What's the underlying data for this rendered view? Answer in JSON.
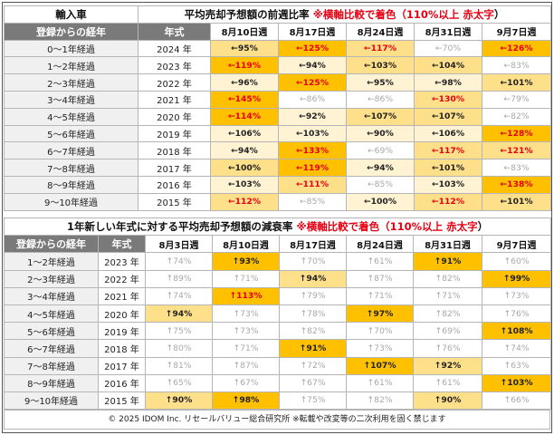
{
  "table1": {
    "corner_label": "輸入車",
    "title_prefix": "平均売却予想額の前週比率 ",
    "title_note": "※横軸比較で着色（110%以上 ",
    "title_red": "赤太字",
    "title_suffix": "）",
    "col_head_elapsed": "登録からの経年",
    "col_head_year": "年式",
    "weeks": [
      "8月10日週",
      "8月17日週",
      "8月24日週",
      "8月31日週",
      "9月7日週"
    ],
    "rows": [
      {
        "elapsed": "0〜1年経過",
        "year": "2024 年",
        "cells": [
          {
            "t": "←95%",
            "lv": 2,
            "hi": false
          },
          {
            "t": "←125%",
            "lv": 3,
            "hi": true
          },
          {
            "t": "←117%",
            "lv": 2,
            "hi": true
          },
          {
            "t": "←70%",
            "lv": 0,
            "hi": false
          },
          {
            "t": "←126%",
            "lv": 3,
            "hi": true
          }
        ]
      },
      {
        "elapsed": "1〜2年経過",
        "year": "2023 年",
        "cells": [
          {
            "t": "←119%",
            "lv": 3,
            "hi": true
          },
          {
            "t": "←94%",
            "lv": 1,
            "hi": false
          },
          {
            "t": "←103%",
            "lv": 2,
            "hi": false
          },
          {
            "t": "←104%",
            "lv": 2,
            "hi": false
          },
          {
            "t": "←83%",
            "lv": 0,
            "hi": false
          }
        ]
      },
      {
        "elapsed": "2〜3年経過",
        "year": "2022 年",
        "cells": [
          {
            "t": "←96%",
            "lv": 1,
            "hi": false
          },
          {
            "t": "←125%",
            "lv": 3,
            "hi": true
          },
          {
            "t": "←95%",
            "lv": 1,
            "hi": false
          },
          {
            "t": "←98%",
            "lv": 1,
            "hi": false
          },
          {
            "t": "←101%",
            "lv": 2,
            "hi": false
          }
        ]
      },
      {
        "elapsed": "3〜4年経過",
        "year": "2021 年",
        "cells": [
          {
            "t": "←145%",
            "lv": 3,
            "hi": true
          },
          {
            "t": "←86%",
            "lv": 0,
            "hi": false
          },
          {
            "t": "←86%",
            "lv": 0,
            "hi": false
          },
          {
            "t": "←130%",
            "lv": 2,
            "hi": true
          },
          {
            "t": "←79%",
            "lv": 0,
            "hi": false
          }
        ]
      },
      {
        "elapsed": "4〜5年経過",
        "year": "2020 年",
        "cells": [
          {
            "t": "←114%",
            "lv": 3,
            "hi": true
          },
          {
            "t": "←92%",
            "lv": 1,
            "hi": false
          },
          {
            "t": "←107%",
            "lv": 2,
            "hi": false
          },
          {
            "t": "←107%",
            "lv": 2,
            "hi": false
          },
          {
            "t": "←82%",
            "lv": 0,
            "hi": false
          }
        ]
      },
      {
        "elapsed": "5〜6年経過",
        "year": "2019 年",
        "cells": [
          {
            "t": "←106%",
            "lv": 1,
            "hi": false
          },
          {
            "t": "←103%",
            "lv": 1,
            "hi": false
          },
          {
            "t": "←90%",
            "lv": 1,
            "hi": false
          },
          {
            "t": "←106%",
            "lv": 1,
            "hi": false
          },
          {
            "t": "←128%",
            "lv": 3,
            "hi": true
          }
        ]
      },
      {
        "elapsed": "6〜7年経過",
        "year": "2018 年",
        "cells": [
          {
            "t": "←94%",
            "lv": 1,
            "hi": false
          },
          {
            "t": "←133%",
            "lv": 3,
            "hi": true
          },
          {
            "t": "←69%",
            "lv": 0,
            "hi": false
          },
          {
            "t": "←117%",
            "lv": 2,
            "hi": true
          },
          {
            "t": "←121%",
            "lv": 2,
            "hi": true
          }
        ]
      },
      {
        "elapsed": "7〜8年経過",
        "year": "2017 年",
        "cells": [
          {
            "t": "←100%",
            "lv": 2,
            "hi": false
          },
          {
            "t": "←119%",
            "lv": 3,
            "hi": true
          },
          {
            "t": "←94%",
            "lv": 1,
            "hi": false
          },
          {
            "t": "←101%",
            "lv": 2,
            "hi": false
          },
          {
            "t": "←83%",
            "lv": 0,
            "hi": false
          }
        ]
      },
      {
        "elapsed": "8〜9年経過",
        "year": "2016 年",
        "cells": [
          {
            "t": "←103%",
            "lv": 1,
            "hi": false
          },
          {
            "t": "←111%",
            "lv": 2,
            "hi": true
          },
          {
            "t": "←85%",
            "lv": 0,
            "hi": false
          },
          {
            "t": "←103%",
            "lv": 1,
            "hi": false
          },
          {
            "t": "←138%",
            "lv": 3,
            "hi": true
          }
        ]
      },
      {
        "elapsed": "9〜10年経過",
        "year": "2015 年",
        "cells": [
          {
            "t": "←112%",
            "lv": 2,
            "hi": true
          },
          {
            "t": "←85%",
            "lv": 0,
            "hi": false
          },
          {
            "t": "←100%",
            "lv": 1,
            "hi": false
          },
          {
            "t": "←112%",
            "lv": 2,
            "hi": true
          },
          {
            "t": "←101%",
            "lv": 2,
            "hi": false
          }
        ]
      }
    ]
  },
  "table2": {
    "title_prefix": "1年新しい年式に対する平均売却予想額の減衰率 ",
    "title_note": "※横軸比較で着色（110%以上 ",
    "title_red": "赤太字",
    "title_suffix": "）",
    "col_head_elapsed": "登録からの経年",
    "col_head_year": "年式",
    "weeks": [
      "8月3日週",
      "8月10日週",
      "8月17日週",
      "8月24日週",
      "8月31日週",
      "9月7日週"
    ],
    "rows": [
      {
        "elapsed": "1〜2年経過",
        "year": "2023 年",
        "cells": [
          {
            "t": "↑74%",
            "lv": 0,
            "hi": false
          },
          {
            "t": "↑93%",
            "lv": 3,
            "hi": false
          },
          {
            "t": "↑70%",
            "lv": 0,
            "hi": false
          },
          {
            "t": "↑61%",
            "lv": 0,
            "hi": false
          },
          {
            "t": "↑91%",
            "lv": 3,
            "hi": false
          },
          {
            "t": "↑60%",
            "lv": 0,
            "hi": false
          }
        ]
      },
      {
        "elapsed": "2〜3年経過",
        "year": "2022 年",
        "cells": [
          {
            "t": "↑89%",
            "lv": 0,
            "hi": false
          },
          {
            "t": "↑71%",
            "lv": 0,
            "hi": false
          },
          {
            "t": "↑94%",
            "lv": 2,
            "hi": false
          },
          {
            "t": "↑87%",
            "lv": 0,
            "hi": false
          },
          {
            "t": "↑82%",
            "lv": 0,
            "hi": false
          },
          {
            "t": "↑99%",
            "lv": 3,
            "hi": false
          }
        ]
      },
      {
        "elapsed": "3〜4年経過",
        "year": "2021 年",
        "cells": [
          {
            "t": "↑74%",
            "lv": 0,
            "hi": false
          },
          {
            "t": "↑113%",
            "lv": 3,
            "hi": true
          },
          {
            "t": "↑79%",
            "lv": 0,
            "hi": false
          },
          {
            "t": "↑71%",
            "lv": 0,
            "hi": false
          },
          {
            "t": "↑71%",
            "lv": 0,
            "hi": false
          },
          {
            "t": "↑73%",
            "lv": 0,
            "hi": false
          }
        ]
      },
      {
        "elapsed": "4〜5年経過",
        "year": "2020 年",
        "cells": [
          {
            "t": "↑94%",
            "lv": 2,
            "hi": false
          },
          {
            "t": "↑73%",
            "lv": 0,
            "hi": false
          },
          {
            "t": "↑78%",
            "lv": 0,
            "hi": false
          },
          {
            "t": "↑97%",
            "lv": 3,
            "hi": false
          },
          {
            "t": "↑82%",
            "lv": 0,
            "hi": false
          },
          {
            "t": "↑76%",
            "lv": 0,
            "hi": false
          }
        ]
      },
      {
        "elapsed": "5〜6年経過",
        "year": "2019 年",
        "cells": [
          {
            "t": "↑75%",
            "lv": 0,
            "hi": false
          },
          {
            "t": "↑73%",
            "lv": 0,
            "hi": false
          },
          {
            "t": "↑82%",
            "lv": 0,
            "hi": false
          },
          {
            "t": "↑70%",
            "lv": 0,
            "hi": false
          },
          {
            "t": "↑69%",
            "lv": 0,
            "hi": false
          },
          {
            "t": "↑108%",
            "lv": 3,
            "hi": false
          }
        ]
      },
      {
        "elapsed": "6〜7年経過",
        "year": "2018 年",
        "cells": [
          {
            "t": "↑80%",
            "lv": 0,
            "hi": false
          },
          {
            "t": "↑71%",
            "lv": 0,
            "hi": false
          },
          {
            "t": "↑91%",
            "lv": 3,
            "hi": false
          },
          {
            "t": "↑73%",
            "lv": 0,
            "hi": false
          },
          {
            "t": "↑76%",
            "lv": 0,
            "hi": false
          },
          {
            "t": "↑74%",
            "lv": 0,
            "hi": false
          }
        ]
      },
      {
        "elapsed": "7〜8年経過",
        "year": "2017 年",
        "cells": [
          {
            "t": "↑81%",
            "lv": 0,
            "hi": false
          },
          {
            "t": "↑87%",
            "lv": 0,
            "hi": false
          },
          {
            "t": "↑72%",
            "lv": 0,
            "hi": false
          },
          {
            "t": "↑107%",
            "lv": 3,
            "hi": false
          },
          {
            "t": "↑92%",
            "lv": 2,
            "hi": false
          },
          {
            "t": "↑63%",
            "lv": 0,
            "hi": false
          }
        ]
      },
      {
        "elapsed": "8〜9年経過",
        "year": "2016 年",
        "cells": [
          {
            "t": "↑65%",
            "lv": 0,
            "hi": false
          },
          {
            "t": "↑67%",
            "lv": 0,
            "hi": false
          },
          {
            "t": "↑67%",
            "lv": 0,
            "hi": false
          },
          {
            "t": "↑61%",
            "lv": 0,
            "hi": false
          },
          {
            "t": "↑61%",
            "lv": 0,
            "hi": false
          },
          {
            "t": "↑103%",
            "lv": 3,
            "hi": false
          }
        ]
      },
      {
        "elapsed": "9〜10年経過",
        "year": "2015 年",
        "cells": [
          {
            "t": "↑90%",
            "lv": 2,
            "hi": false
          },
          {
            "t": "↑98%",
            "lv": 3,
            "hi": false
          },
          {
            "t": "↑75%",
            "lv": 0,
            "hi": false
          },
          {
            "t": "↑82%",
            "lv": 0,
            "hi": false
          },
          {
            "t": "↑90%",
            "lv": 2,
            "hi": false
          },
          {
            "t": "↑66%",
            "lv": 0,
            "hi": false
          }
        ]
      }
    ]
  },
  "footer": "© 2025 IDOM Inc. リセールバリュー総合研究所 ※転載や改変等の二次利用を固く禁じます",
  "colors": {
    "header_dark": "#7a7a7a",
    "highlight_strong": "#ffc000",
    "highlight_mid": "#ffe08a",
    "highlight_light": "#fff3d4",
    "alert_red": "#e60012"
  }
}
